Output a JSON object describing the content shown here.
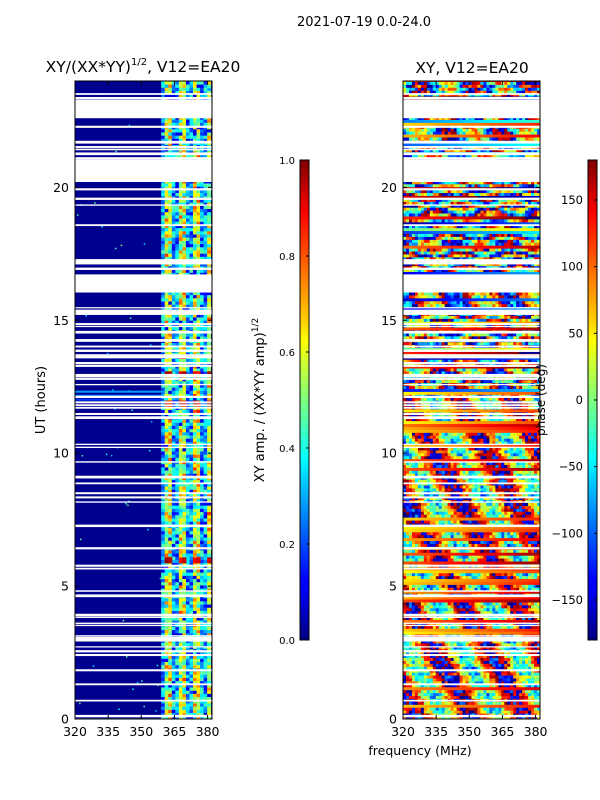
{
  "suptitle": "2021-07-19 0.0-24.0",
  "xlabel_shared": "frequency (MHz)",
  "chart_data": [
    {
      "type": "heatmap",
      "title_main": "XY/(XX*YY)",
      "title_sup": "1/2",
      "title_tail": ", V12=EA20",
      "ylabel": "UT (hours)",
      "xlim": [
        320,
        382
      ],
      "ylim": [
        0,
        24
      ],
      "xticks": [
        "320",
        "335",
        "350",
        "365",
        "380"
      ],
      "xtick_values": [
        320,
        335,
        350,
        365,
        380
      ],
      "yticks": [
        "0",
        "5",
        "10",
        "15",
        "20"
      ],
      "ytick_values": [
        0,
        5,
        10,
        15,
        20
      ],
      "colorbar": {
        "label_main": "XY amp. / (XX*YY amp)",
        "label_sup": "1/2",
        "range": [
          0.0,
          1.0
        ],
        "ticks": [
          "0.0",
          "0.2",
          "0.4",
          "0.6",
          "0.8",
          "1.0"
        ],
        "tick_values": [
          0.0,
          0.2,
          0.4,
          0.6,
          0.8,
          1.0
        ]
      },
      "data_gaps_hours": [
        [
          22.6,
          23.3
        ],
        [
          20.2,
          21.0
        ],
        [
          16.1,
          16.7
        ],
        [
          17.1,
          17.3
        ],
        [
          15.2,
          15.4
        ],
        [
          14.5,
          14.6
        ]
      ],
      "active_band_mhz": [
        359,
        381
      ],
      "peak_rows_hours": [
        12.9,
        11.8,
        5.9
      ]
    },
    {
      "type": "heatmap",
      "title": "XY, V12=EA20",
      "xlim": [
        320,
        382
      ],
      "ylim": [
        0,
        24
      ],
      "xticks": [
        "320",
        "335",
        "350",
        "365",
        "380"
      ],
      "xtick_values": [
        320,
        335,
        350,
        365,
        380
      ],
      "yticks": [
        "0",
        "5",
        "10",
        "15",
        "20"
      ],
      "ytick_values": [
        0,
        5,
        10,
        15,
        20
      ],
      "colorbar": {
        "label": "phase (deg)",
        "range": [
          -180,
          180
        ],
        "ticks": [
          "−150",
          "−100",
          "−50",
          "0",
          "50",
          "100",
          "150"
        ],
        "tick_values": [
          -150,
          -100,
          -50,
          0,
          50,
          100,
          150
        ]
      },
      "data_gaps_hours": [
        [
          22.6,
          23.3
        ],
        [
          20.2,
          21.0
        ],
        [
          16.1,
          16.7
        ],
        [
          17.1,
          17.3
        ],
        [
          15.2,
          15.4
        ],
        [
          14.5,
          14.6
        ]
      ]
    }
  ]
}
